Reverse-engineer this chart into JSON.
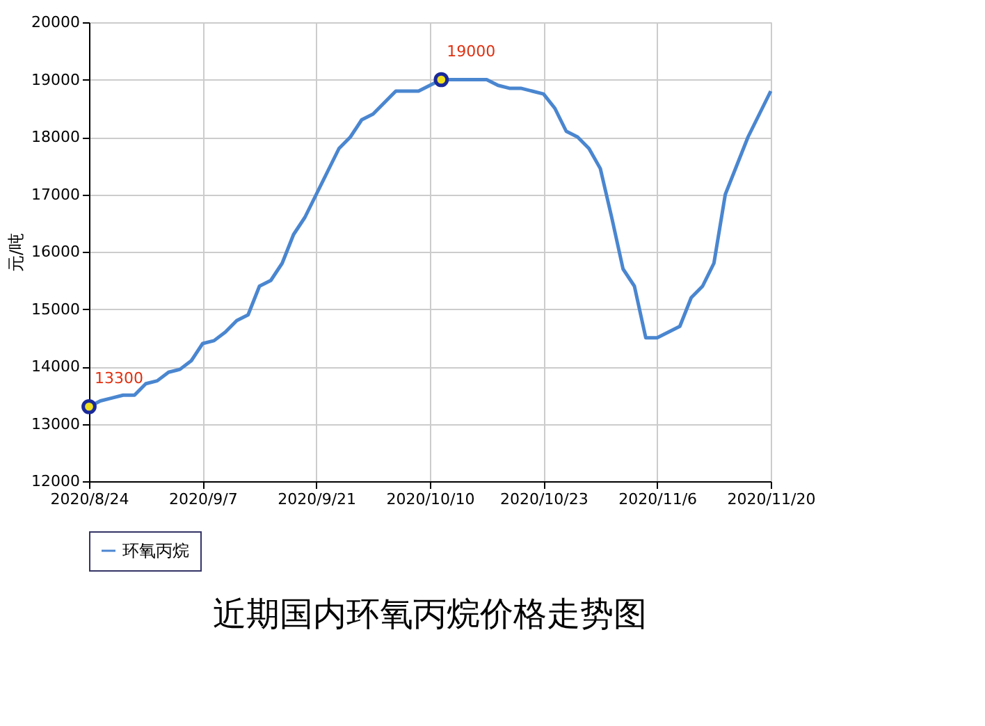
{
  "chart_data": {
    "type": "line",
    "title": "近期国内环氧丙烷价格走势图",
    "ylabel": "元/吨",
    "categories": [
      "2020/8/24",
      null,
      null,
      null,
      null,
      null,
      null,
      null,
      null,
      null,
      "2020/9/7",
      null,
      null,
      null,
      null,
      null,
      null,
      null,
      null,
      null,
      "2020/9/21",
      null,
      null,
      null,
      null,
      null,
      null,
      null,
      null,
      null,
      "2020/10/10",
      null,
      null,
      null,
      null,
      null,
      null,
      null,
      null,
      null,
      "2020/10/23",
      null,
      null,
      null,
      null,
      null,
      null,
      null,
      null,
      null,
      "2020/11/6",
      null,
      null,
      null,
      null,
      null,
      null,
      null,
      null,
      null,
      "2020/11/20"
    ],
    "series": [
      {
        "name": "环氧丙烷",
        "color": "#4a86d0",
        "values": [
          13300,
          13400,
          13450,
          13500,
          13500,
          13700,
          13750,
          13900,
          13950,
          14100,
          14400,
          14450,
          14600,
          14800,
          14900,
          15400,
          15500,
          15800,
          16300,
          16600,
          17000,
          17400,
          17800,
          18000,
          18300,
          18400,
          18600,
          18800,
          18800,
          18800,
          18900,
          19000,
          19000,
          19000,
          19000,
          19000,
          18900,
          18850,
          18850,
          18800,
          18750,
          18500,
          18100,
          18000,
          17800,
          17450,
          16600,
          15700,
          15400,
          14500,
          14500,
          14600,
          14700,
          15200,
          15400,
          15800,
          17000,
          17500,
          18000,
          18400,
          18800
        ],
        "value_labels": [
          "13300",
          null,
          null,
          null,
          null,
          null,
          null,
          null,
          null,
          null,
          null,
          null,
          null,
          null,
          null,
          null,
          null,
          null,
          null,
          null,
          null,
          null,
          null,
          null,
          null,
          null,
          null,
          null,
          null,
          null,
          null,
          "19000",
          null,
          null,
          null,
          null,
          null,
          null,
          null,
          null,
          null,
          null,
          null,
          null,
          null,
          null,
          null,
          null,
          null,
          null,
          null,
          null,
          null,
          null,
          null,
          null,
          null,
          null,
          null,
          null,
          null
        ]
      }
    ],
    "ylim": [
      12000,
      20000
    ],
    "yticks": [
      12000,
      13000,
      14000,
      15000,
      16000,
      17000,
      18000,
      19000,
      20000
    ],
    "grid": true,
    "legend": "bottom",
    "line_style": "solid"
  }
}
